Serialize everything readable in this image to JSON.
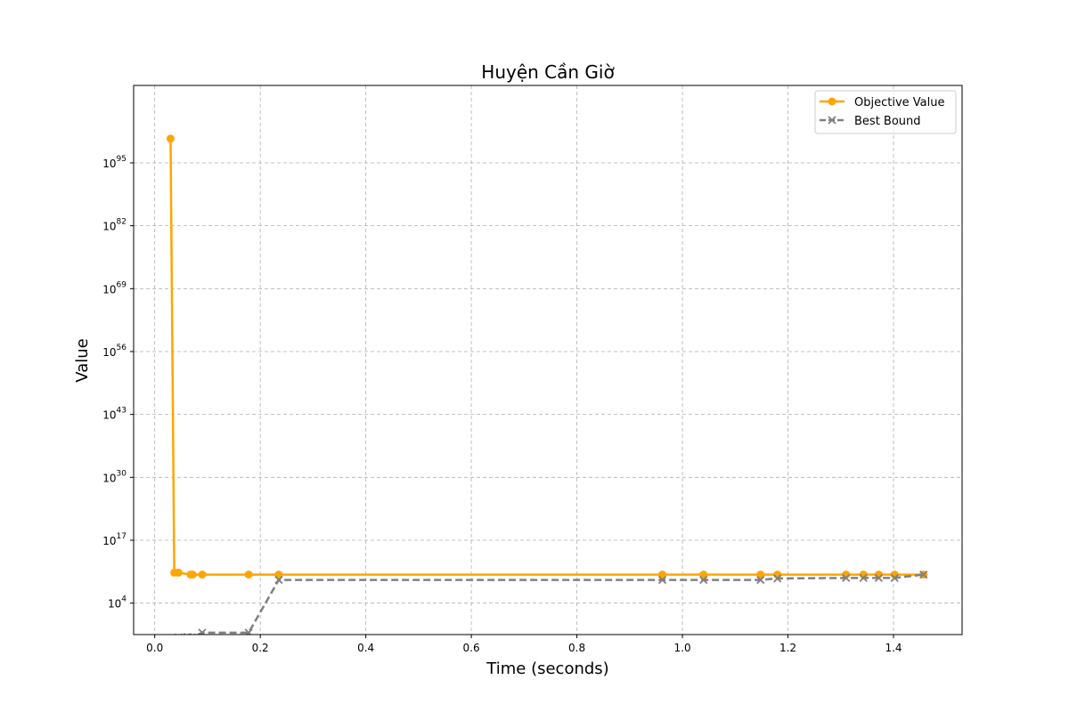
{
  "chart_data": {
    "type": "line",
    "title": "Huyện Cần Giờ",
    "xlabel": "Time (seconds)",
    "ylabel": "Value",
    "y_scale": "log",
    "xlim": [
      -0.04,
      1.53
    ],
    "ylim_exponent": [
      -2.5,
      111
    ],
    "grid": true,
    "legend_placement": "top-right",
    "x_ticks": [
      0.0,
      0.2,
      0.4,
      0.6,
      0.8,
      1.0,
      1.2,
      1.4
    ],
    "x_tick_labels": [
      "0.0",
      "0.2",
      "0.4",
      "0.6",
      "0.8",
      "1.0",
      "1.2",
      "1.4"
    ],
    "y_tick_exponents": [
      4,
      17,
      30,
      43,
      56,
      69,
      82,
      95
    ],
    "y_tick_base": "10",
    "series": [
      {
        "name": "Objective Value",
        "color": "#ffa500",
        "style": "solid",
        "marker": "circle",
        "points": [
          {
            "x": 0.03,
            "log10y": 100
          },
          {
            "x": 0.037,
            "log10y": 10.3
          },
          {
            "x": 0.045,
            "log10y": 10.3
          },
          {
            "x": 0.068,
            "log10y": 9.9
          },
          {
            "x": 0.072,
            "log10y": 9.9
          },
          {
            "x": 0.09,
            "log10y": 9.9
          },
          {
            "x": 0.178,
            "log10y": 9.9
          },
          {
            "x": 0.235,
            "log10y": 9.9
          },
          {
            "x": 0.962,
            "log10y": 9.9
          },
          {
            "x": 1.04,
            "log10y": 9.9
          },
          {
            "x": 1.148,
            "log10y": 9.9
          },
          {
            "x": 1.18,
            "log10y": 9.9
          },
          {
            "x": 1.31,
            "log10y": 9.9
          },
          {
            "x": 1.343,
            "log10y": 9.9
          },
          {
            "x": 1.372,
            "log10y": 9.9
          },
          {
            "x": 1.402,
            "log10y": 9.9
          },
          {
            "x": 1.457,
            "log10y": 9.9
          }
        ]
      },
      {
        "name": "Best Bound",
        "color": "#808080",
        "style": "dashed",
        "marker": "x",
        "points": [
          {
            "x": 0.045,
            "log10y": -10,
            "marker": false
          },
          {
            "x": 0.045,
            "log10y": -3.1
          },
          {
            "x": 0.062,
            "log10y": -3.0
          },
          {
            "x": 0.07,
            "log10y": -3.1
          },
          {
            "x": 0.09,
            "log10y": -2.1
          },
          {
            "x": 0.178,
            "log10y": -2.1
          },
          {
            "x": 0.235,
            "log10y": 8.8
          },
          {
            "x": 0.962,
            "log10y": 8.8
          },
          {
            "x": 1.04,
            "log10y": 8.8
          },
          {
            "x": 1.148,
            "log10y": 8.8
          },
          {
            "x": 1.18,
            "log10y": 9.1
          },
          {
            "x": 1.31,
            "log10y": 9.2
          },
          {
            "x": 1.343,
            "log10y": 9.2
          },
          {
            "x": 1.372,
            "log10y": 9.2
          },
          {
            "x": 1.402,
            "log10y": 9.2
          },
          {
            "x": 1.457,
            "log10y": 9.9
          }
        ]
      }
    ]
  }
}
